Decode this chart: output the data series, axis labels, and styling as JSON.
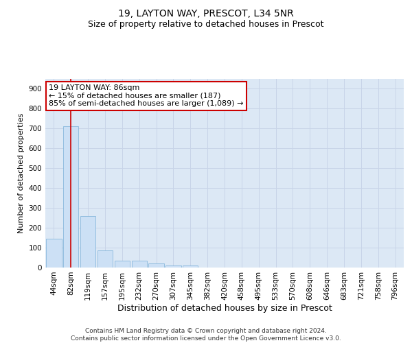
{
  "title1": "19, LAYTON WAY, PRESCOT, L34 5NR",
  "title2": "Size of property relative to detached houses in Prescot",
  "xlabel": "Distribution of detached houses by size in Prescot",
  "ylabel": "Number of detached properties",
  "categories": [
    "44sqm",
    "82sqm",
    "119sqm",
    "157sqm",
    "195sqm",
    "232sqm",
    "270sqm",
    "307sqm",
    "345sqm",
    "382sqm",
    "420sqm",
    "458sqm",
    "495sqm",
    "533sqm",
    "570sqm",
    "608sqm",
    "646sqm",
    "683sqm",
    "721sqm",
    "758sqm",
    "796sqm"
  ],
  "values": [
    145,
    710,
    260,
    85,
    35,
    35,
    20,
    10,
    10,
    0,
    0,
    0,
    0,
    0,
    0,
    0,
    0,
    0,
    0,
    0,
    0
  ],
  "bar_color": "#cce0f5",
  "bar_edge_color": "#7ab0d8",
  "grid_color": "#c8d4e8",
  "background_color": "#dce8f5",
  "annotation_text": "19 LAYTON WAY: 86sqm\n← 15% of detached houses are smaller (187)\n85% of semi-detached houses are larger (1,089) →",
  "annotation_box_color": "#ffffff",
  "annotation_box_edge": "#cc0000",
  "vline_x": 1,
  "vline_color": "#cc0000",
  "ylim": [
    0,
    950
  ],
  "yticks": [
    0,
    100,
    200,
    300,
    400,
    500,
    600,
    700,
    800,
    900
  ],
  "footer_text": "Contains HM Land Registry data © Crown copyright and database right 2024.\nContains public sector information licensed under the Open Government Licence v3.0.",
  "title1_fontsize": 10,
  "title2_fontsize": 9,
  "xlabel_fontsize": 9,
  "ylabel_fontsize": 8,
  "tick_fontsize": 7.5,
  "annotation_fontsize": 8,
  "footer_fontsize": 6.5
}
